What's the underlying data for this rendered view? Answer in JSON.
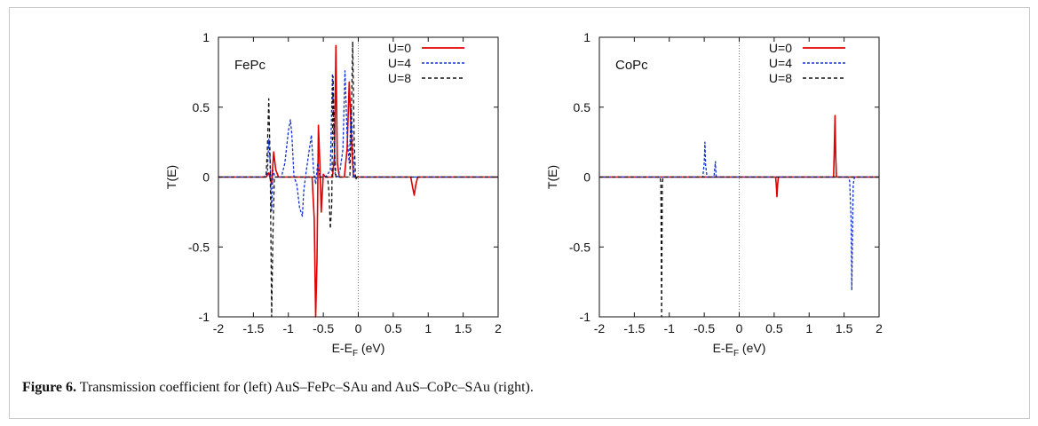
{
  "caption": {
    "label": "Figure 6.",
    "text": "Transmission coefficient for (left) AuS–FePc–SAu and AuS–CoPc–SAu (right)."
  },
  "chart_data": [
    {
      "type": "line",
      "panel_label": "FePc",
      "xlabel_main": "E-E",
      "xlabel_sub": "F",
      "xlabel_unit": " (eV)",
      "ylabel": "T(E)",
      "xlim": [
        -2,
        2
      ],
      "ylim": [
        -1,
        1
      ],
      "x_ticks": [
        -2,
        -1.5,
        -1,
        -0.5,
        0,
        0.5,
        1,
        1.5,
        2
      ],
      "x_tick_labels": [
        "-2",
        "-1.5",
        "-1",
        "-0.5",
        "0",
        "0.5",
        "1",
        "1.5",
        "2"
      ],
      "y_ticks": [
        -1,
        -0.5,
        0,
        0.5,
        1
      ],
      "y_tick_labels": [
        "-1",
        "-0.5",
        "0",
        "0.5",
        "1"
      ],
      "legend_position": "top-right",
      "series": [
        {
          "name": "U=0",
          "color": "#e00000",
          "dash": "solid",
          "x": [
            -2,
            -1.32,
            -1.28,
            -1.24,
            -1.21,
            -1.18,
            -1.14,
            -1.1,
            -0.7,
            -0.66,
            -0.63,
            -0.61,
            -0.59,
            -0.57,
            -0.55,
            -0.53,
            -0.5,
            -0.47,
            -0.42,
            -0.37,
            -0.34,
            -0.32,
            -0.3,
            -0.27,
            -0.24,
            -0.2,
            -0.16,
            -0.13,
            -0.1,
            -0.07,
            -0.04,
            0.7,
            0.75,
            0.78,
            0.8,
            0.82,
            0.85,
            2
          ],
          "y": [
            0,
            0,
            0.03,
            -0.05,
            0.18,
            0.05,
            0,
            0,
            0,
            0,
            -0.3,
            -1,
            -0.6,
            0.37,
            0.1,
            -0.25,
            0.02,
            0,
            0,
            0,
            0.15,
            0.94,
            0.1,
            0,
            0,
            0,
            0.2,
            0.68,
            0.3,
            0,
            0,
            0,
            0,
            -0.08,
            -0.13,
            -0.06,
            0,
            0
          ]
        },
        {
          "name": "U=4",
          "color": "#1030d0",
          "dash": "3,2",
          "x": [
            -2,
            -1.35,
            -1.3,
            -1.28,
            -1.26,
            -1.24,
            -1.22,
            -1.19,
            -1.15,
            -1.1,
            -1.05,
            -1.0,
            -0.97,
            -0.95,
            -0.92,
            -0.88,
            -0.84,
            -0.8,
            -0.78,
            -0.75,
            -0.7,
            -0.67,
            -0.64,
            -0.61,
            -0.58,
            -0.55,
            -0.52,
            -0.49,
            -0.45,
            -0.4,
            -0.37,
            -0.35,
            -0.33,
            -0.3,
            -0.26,
            -0.22,
            -0.19,
            -0.16,
            -0.13,
            -0.1,
            -0.06,
            2
          ],
          "y": [
            0,
            0,
            0.02,
            0.27,
            0.1,
            -0.24,
            0.05,
            0,
            0,
            0,
            0.1,
            0.33,
            0.41,
            0.3,
            0,
            -0.05,
            -0.22,
            -0.28,
            -0.1,
            0.02,
            0.2,
            0.3,
            0.05,
            -0.05,
            0.1,
            0,
            0,
            0,
            0.01,
            0.05,
            0.74,
            0.3,
            0.02,
            0,
            0.05,
            0.2,
            0.76,
            0.3,
            0.1,
            0.5,
            0,
            0
          ]
        },
        {
          "name": "U=8",
          "color": "#111111",
          "dash": "4,3",
          "x": [
            -2,
            -1.32,
            -1.3,
            -1.28,
            -1.26,
            -1.24,
            -1.22,
            -1.2,
            -0.46,
            -0.44,
            -0.42,
            -0.4,
            -0.38,
            -0.36,
            -0.34,
            -0.32,
            -0.12,
            -0.1,
            -0.08,
            -0.06,
            -0.04,
            -0.02,
            2
          ],
          "y": [
            0,
            0,
            0.2,
            0.56,
            0.1,
            -1.0,
            -0.4,
            0,
            0,
            0,
            -0.1,
            -0.37,
            -0.2,
            0.72,
            0.2,
            0,
            0,
            0.4,
            0.97,
            0.3,
            -0.02,
            0,
            0
          ]
        }
      ]
    },
    {
      "type": "line",
      "panel_label": "CoPc",
      "xlabel_main": "E-E",
      "xlabel_sub": "F",
      "xlabel_unit": " (eV)",
      "ylabel": "T(E)",
      "xlim": [
        -2,
        2
      ],
      "ylim": [
        -1,
        1
      ],
      "x_ticks": [
        -2,
        -1.5,
        -1,
        -0.5,
        0,
        0.5,
        1,
        1.5,
        2
      ],
      "x_tick_labels": [
        "-2",
        "-1.5",
        "-1",
        "-0.5",
        "0",
        "0.5",
        "1",
        "1.5",
        "2"
      ],
      "y_ticks": [
        -1,
        -0.5,
        0,
        0.5,
        1
      ],
      "y_tick_labels": [
        "-1",
        "-0.5",
        "0",
        "0.5",
        "1"
      ],
      "legend_position": "top-right",
      "series": [
        {
          "name": "U=0",
          "color": "#e00000",
          "dash": "solid",
          "x": [
            -2,
            0.52,
            0.53,
            0.54,
            0.55,
            0.56,
            1.35,
            1.36,
            1.37,
            1.38,
            1.39,
            2
          ],
          "y": [
            0,
            0,
            -0.05,
            -0.14,
            -0.05,
            0,
            0,
            0.2,
            0.44,
            0.15,
            0,
            0
          ]
        },
        {
          "name": "U=4",
          "color": "#1030d0",
          "dash": "3,2",
          "x": [
            -2,
            -0.52,
            -0.5,
            -0.49,
            -0.48,
            -0.46,
            -0.36,
            -0.35,
            -0.34,
            -0.33,
            1.56,
            1.58,
            1.6,
            1.61,
            1.62,
            1.63,
            1.65,
            2
          ],
          "y": [
            0,
            0,
            0.1,
            0.25,
            0.08,
            0,
            0,
            0.06,
            0.11,
            0,
            0,
            -0.03,
            -0.3,
            -0.81,
            -0.4,
            -0.05,
            0,
            0
          ]
        },
        {
          "name": "U=8",
          "color": "#111111",
          "dash": "4,3",
          "x": [
            -2,
            -1.13,
            -1.12,
            -1.11,
            -1.1,
            -1.09,
            2
          ],
          "y": [
            0,
            0,
            -0.05,
            -1.0,
            -0.05,
            0,
            0
          ]
        }
      ]
    }
  ]
}
